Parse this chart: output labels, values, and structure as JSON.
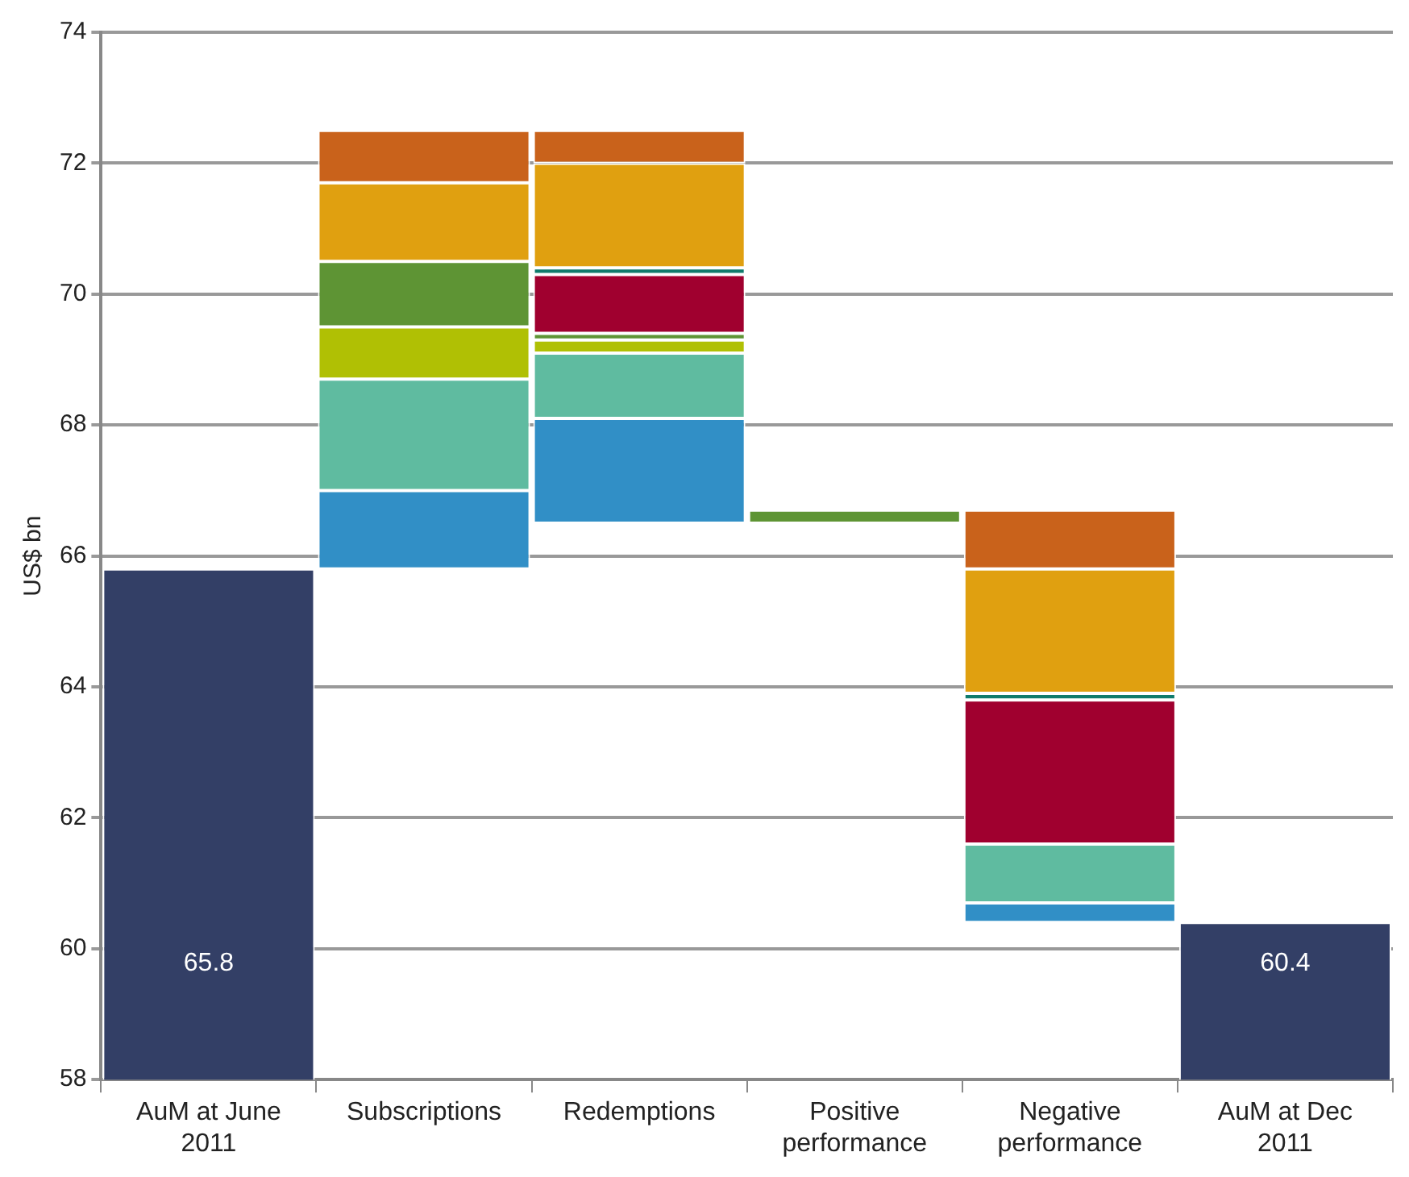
{
  "chart_data": {
    "type": "bar",
    "ylabel": "US$ bn",
    "categories": [
      "AuM at June 2011",
      "Subscriptions",
      "Redemptions",
      "Positive performance",
      "Negative performance",
      "AuM at Dec 2011"
    ],
    "series": [
      {
        "color": "#333f66",
        "values": [
          65.8,
          null,
          null,
          null,
          null,
          60.4
        ],
        "value_labels": [
          "65.8",
          null,
          null,
          null,
          null,
          "60.4"
        ]
      },
      {
        "color": "#318fc6",
        "values": [
          null,
          1.2,
          1.6,
          null,
          0.3,
          null
        ],
        "base": [
          null,
          65.8,
          66.5,
          null,
          60.4,
          null
        ]
      },
      {
        "color": "#5fbba0",
        "values": [
          null,
          1.7,
          1.0,
          null,
          0.9,
          null
        ],
        "base": [
          null,
          67.0,
          68.1,
          null,
          60.7,
          null
        ]
      },
      {
        "color": "#b0c004",
        "values": [
          null,
          0.8,
          0.2,
          null,
          null,
          null
        ],
        "base": [
          null,
          68.7,
          69.1,
          null,
          null,
          null
        ]
      },
      {
        "color": "#5e9434",
        "values": [
          null,
          1.0,
          0.1,
          0.2,
          null,
          null
        ],
        "base": [
          null,
          69.5,
          69.3,
          66.5,
          null,
          null
        ]
      },
      {
        "color": "#a0002f",
        "values": [
          null,
          null,
          0.9,
          null,
          2.2,
          null
        ],
        "base": [
          null,
          null,
          69.4,
          null,
          61.6,
          null
        ]
      },
      {
        "color": "#0f7b6c",
        "values": [
          null,
          null,
          0.1,
          null,
          0.1,
          null
        ],
        "base": [
          null,
          null,
          70.3,
          null,
          63.8,
          null
        ]
      },
      {
        "color": "#e0a010",
        "values": [
          null,
          1.2,
          1.6,
          null,
          1.9,
          null
        ],
        "base": [
          null,
          70.5,
          70.4,
          null,
          63.9,
          null
        ]
      },
      {
        "color": "#c9621b",
        "values": [
          null,
          0.8,
          0.5,
          null,
          0.9,
          null
        ],
        "base": [
          null,
          71.7,
          72.0,
          null,
          65.8,
          null
        ]
      }
    ],
    "ylim": [
      58,
      74
    ],
    "yticks": [
      58,
      60,
      62,
      64,
      66,
      68,
      70,
      72,
      74
    ],
    "grid": "y",
    "legend": false
  }
}
